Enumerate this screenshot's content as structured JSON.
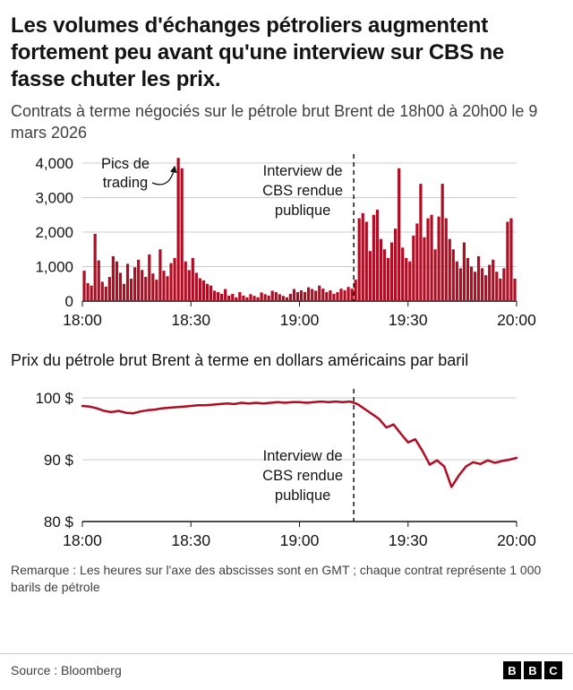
{
  "page": {
    "title": "Les volumes d'échanges pétroliers augmentent fortement peu avant qu'une interview sur CBS ne fasse chuter les prix.",
    "subtitle": "Contrats à terme négociés sur le pétrole brut Brent de 18h00 à 20h00 le 9 mars 2026",
    "footnote": "Remarque : Les heures sur l'axe des abscisses sont en GMT ; chaque contrat représente 1 000 barils de pétrole",
    "source": "Source : Bloomberg",
    "logo_letters": [
      "B",
      "B",
      "C"
    ]
  },
  "colors": {
    "accent": "#b00d23",
    "grid": "#cccccc",
    "axis": "#141414",
    "text": "#141414",
    "muted": "#404040"
  },
  "chart_data": [
    {
      "type": "bar",
      "title": "",
      "xlabel": "",
      "ylabel": "",
      "x_ticks": [
        "18:00",
        "18:30",
        "19:00",
        "19:30",
        "20:00"
      ],
      "x_tick_minutes": [
        0,
        30,
        60,
        90,
        120
      ],
      "x_range_minutes": [
        0,
        120
      ],
      "y_ticks": [
        "0",
        "1,000",
        "2,000",
        "3,000",
        "4,000"
      ],
      "y_tick_values": [
        0,
        1000,
        2000,
        3000,
        4000
      ],
      "ylim": [
        0,
        4300
      ],
      "event_line_minute": 75,
      "annotations": [
        {
          "id": "peaks",
          "text": "Pics de trading",
          "minute": 26
        },
        {
          "id": "interview",
          "text": "Interview de CBS rendue publique",
          "minute": 75
        }
      ],
      "values": [
        880,
        520,
        450,
        1950,
        1180,
        560,
        420,
        700,
        1300,
        1150,
        820,
        500,
        1080,
        650,
        980,
        1200,
        900,
        700,
        1350,
        800,
        620,
        1500,
        880,
        720,
        1100,
        1250,
        4150,
        3850,
        1150,
        900,
        1250,
        820,
        660,
        600,
        500,
        450,
        300,
        260,
        210,
        350,
        160,
        210,
        110,
        260,
        160,
        110,
        200,
        150,
        110,
        250,
        200,
        160,
        300,
        260,
        200,
        150,
        110,
        210,
        350,
        260,
        310,
        260,
        400,
        350,
        300,
        450,
        360,
        260,
        310,
        210,
        260,
        360,
        310,
        410,
        360,
        620,
        2400,
        2550,
        2300,
        1450,
        2500,
        2650,
        1800,
        1500,
        1250,
        1700,
        2100,
        3850,
        1550,
        1250,
        1150,
        1900,
        2250,
        3400,
        1850,
        2400,
        2500,
        1500,
        2450,
        3400,
        2400,
        1800,
        1500,
        1150,
        950,
        1700,
        1250,
        1000,
        850,
        1300,
        950,
        750,
        1050,
        1200,
        850,
        650,
        950,
        2300,
        2400,
        650
      ]
    },
    {
      "type": "line",
      "title": "Prix du pétrole brut Brent à terme en dollars américains par baril",
      "xlabel": "",
      "ylabel": "",
      "x_ticks": [
        "18:00",
        "18:30",
        "19:00",
        "19:30",
        "20:00"
      ],
      "x_tick_minutes": [
        0,
        30,
        60,
        90,
        120
      ],
      "x_range_minutes": [
        0,
        120
      ],
      "x_step_minutes": 2,
      "y_ticks": [
        "80 $",
        "90 $",
        "100 $"
      ],
      "y_tick_values": [
        80,
        90,
        100
      ],
      "ylim": [
        80,
        102
      ],
      "event_line_minute": 75,
      "annotations": [
        {
          "id": "interview",
          "text": "Interview de CBS rendue publique",
          "minute": 75
        }
      ],
      "values": [
        98.7,
        98.6,
        98.3,
        97.9,
        97.7,
        97.9,
        97.6,
        97.5,
        97.8,
        98.0,
        98.1,
        98.3,
        98.4,
        98.5,
        98.6,
        98.7,
        98.8,
        98.8,
        98.9,
        99.0,
        99.1,
        99.0,
        99.2,
        99.1,
        99.2,
        99.1,
        99.2,
        99.3,
        99.2,
        99.3,
        99.3,
        99.2,
        99.3,
        99.4,
        99.3,
        99.4,
        99.3,
        99.4,
        99.0,
        98.2,
        97.4,
        96.6,
        95.2,
        95.7,
        94.2,
        92.8,
        93.3,
        91.4,
        89.2,
        89.9,
        88.9,
        85.6,
        87.4,
        88.9,
        89.6,
        89.3,
        89.9,
        89.5,
        89.8,
        90.0,
        90.3
      ]
    }
  ]
}
